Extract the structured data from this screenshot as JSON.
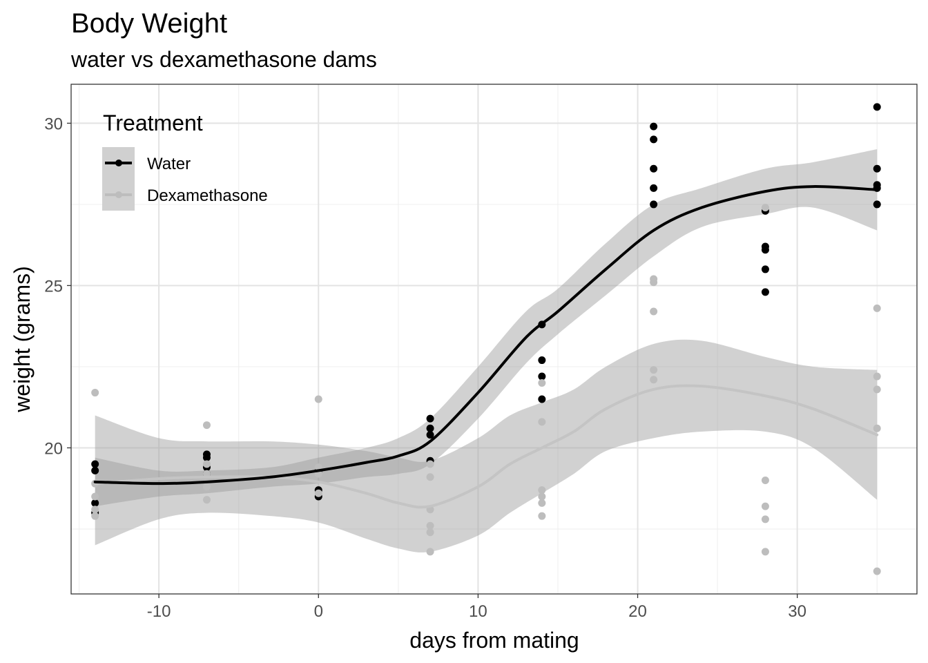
{
  "chart_data": {
    "type": "scatter",
    "title": "Body Weight",
    "subtitle": "water vs dexamethasone dams",
    "xlabel": "days from mating",
    "ylabel": "weight (grams)",
    "xlim": [
      -15.5,
      37.5
    ],
    "ylim": [
      15.5,
      31.2
    ],
    "x_ticks": [
      -10,
      0,
      10,
      20,
      30
    ],
    "y_ticks": [
      20,
      25,
      30
    ],
    "x_tick_labels": [
      "-10",
      "0",
      "10",
      "20",
      "30"
    ],
    "y_tick_labels": [
      "20",
      "25",
      "30"
    ],
    "grid": true,
    "legend": {
      "title": "Treatment",
      "position": "top-left"
    },
    "series": [
      {
        "name": "Water",
        "color": "#000000",
        "points": [
          [
            -14,
            19.5
          ],
          [
            -14,
            19.3
          ],
          [
            -14,
            18.3
          ],
          [
            -14,
            18.0
          ],
          [
            -7,
            19.8
          ],
          [
            -7,
            19.7
          ],
          [
            -7,
            19.4
          ],
          [
            -7,
            19.2
          ],
          [
            0,
            19.3
          ],
          [
            0,
            18.7
          ],
          [
            0,
            18.5
          ],
          [
            7,
            20.9
          ],
          [
            7,
            20.6
          ],
          [
            7,
            20.4
          ],
          [
            7,
            19.6
          ],
          [
            14,
            23.8
          ],
          [
            14,
            22.7
          ],
          [
            14,
            22.2
          ],
          [
            14,
            21.5
          ],
          [
            21,
            29.9
          ],
          [
            21,
            29.5
          ],
          [
            21,
            28.6
          ],
          [
            21,
            28.0
          ],
          [
            21,
            27.5
          ],
          [
            28,
            27.3
          ],
          [
            28,
            26.2
          ],
          [
            28,
            26.1
          ],
          [
            28,
            25.5
          ],
          [
            28,
            24.8
          ],
          [
            35,
            30.5
          ],
          [
            35,
            28.6
          ],
          [
            35,
            28.1
          ],
          [
            35,
            28.0
          ],
          [
            35,
            27.5
          ]
        ],
        "smooth": {
          "x": [
            -14,
            -10,
            -7,
            -3,
            0,
            3,
            5,
            7,
            10,
            13,
            15,
            18,
            21,
            24,
            28,
            31,
            35
          ],
          "y": [
            18.95,
            18.9,
            18.95,
            19.1,
            19.3,
            19.55,
            19.75,
            20.2,
            21.7,
            23.4,
            24.2,
            25.5,
            26.7,
            27.4,
            27.9,
            28.05,
            27.95
          ],
          "lower": [
            18.2,
            18.5,
            18.6,
            18.8,
            18.9,
            19.1,
            19.2,
            19.5,
            20.9,
            22.6,
            23.5,
            24.7,
            25.9,
            26.8,
            27.2,
            27.4,
            26.7
          ],
          "upper": [
            19.7,
            19.3,
            19.3,
            19.4,
            19.7,
            20.0,
            20.3,
            20.9,
            22.5,
            24.2,
            24.9,
            26.3,
            27.5,
            28.0,
            28.6,
            28.8,
            29.2
          ]
        }
      },
      {
        "name": "Dexamethasone",
        "color": "#bdbdbd",
        "points": [
          [
            -14,
            21.7
          ],
          [
            -14,
            18.9
          ],
          [
            -14,
            18.5
          ],
          [
            -14,
            18.1
          ],
          [
            -14,
            17.9
          ],
          [
            -7,
            20.7
          ],
          [
            -7,
            19.5
          ],
          [
            -7,
            19.2
          ],
          [
            -7,
            18.8
          ],
          [
            -7,
            18.4
          ],
          [
            0,
            21.5
          ],
          [
            0,
            19.4
          ],
          [
            0,
            19.2
          ],
          [
            0,
            18.6
          ],
          [
            7,
            19.5
          ],
          [
            7,
            19.1
          ],
          [
            7,
            18.1
          ],
          [
            7,
            17.6
          ],
          [
            7,
            17.4
          ],
          [
            7,
            16.8
          ],
          [
            14,
            22.0
          ],
          [
            14,
            20.8
          ],
          [
            14,
            18.7
          ],
          [
            14,
            18.5
          ],
          [
            14,
            18.3
          ],
          [
            14,
            17.9
          ],
          [
            21,
            25.2
          ],
          [
            21,
            25.1
          ],
          [
            21,
            24.2
          ],
          [
            21,
            22.4
          ],
          [
            21,
            22.1
          ],
          [
            28,
            27.4
          ],
          [
            28,
            19.0
          ],
          [
            28,
            18.2
          ],
          [
            28,
            17.8
          ],
          [
            28,
            16.8
          ],
          [
            35,
            24.3
          ],
          [
            35,
            22.2
          ],
          [
            35,
            21.8
          ],
          [
            35,
            20.6
          ],
          [
            35,
            16.2
          ]
        ],
        "smooth": {
          "x": [
            -14,
            -10,
            -7,
            -3,
            0,
            3,
            5,
            7,
            10,
            12,
            14,
            16,
            18,
            21,
            24,
            28,
            31,
            35
          ],
          "y": [
            18.9,
            19.05,
            19.1,
            19.1,
            18.95,
            18.6,
            18.3,
            18.2,
            18.8,
            19.5,
            20.0,
            20.5,
            21.2,
            21.8,
            21.9,
            21.6,
            21.2,
            20.4
          ],
          "lower": [
            17.0,
            17.8,
            18.0,
            17.9,
            17.7,
            17.2,
            16.9,
            16.8,
            17.3,
            18.0,
            18.6,
            19.2,
            19.9,
            20.3,
            20.5,
            20.5,
            20.0,
            18.4
          ],
          "upper": [
            21.0,
            20.3,
            20.2,
            20.2,
            20.1,
            19.9,
            19.7,
            19.6,
            20.3,
            21.0,
            21.4,
            21.8,
            22.5,
            23.2,
            23.3,
            22.8,
            22.5,
            22.4
          ]
        }
      }
    ]
  }
}
